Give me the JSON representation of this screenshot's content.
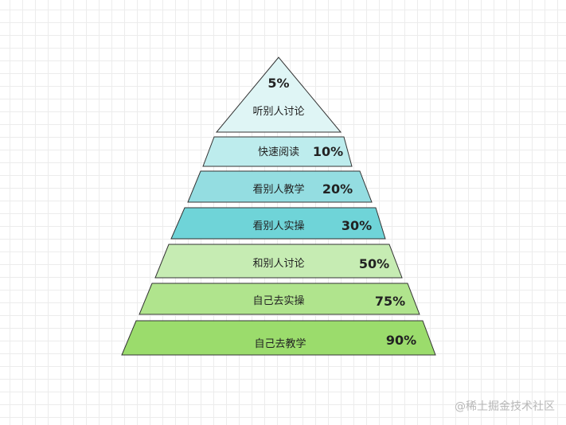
{
  "levels": [
    {
      "label": "听别人讨论",
      "percent": "5%",
      "fill": "#dff5f5"
    },
    {
      "label": "快速阅读",
      "percent": "10%",
      "fill": "#bdeced"
    },
    {
      "label": "看别人教学",
      "percent": "20%",
      "fill": "#94dde1"
    },
    {
      "label": "看别人实操",
      "percent": "30%",
      "fill": "#6fd4d8"
    },
    {
      "label": "和别人讨论",
      "percent": "50%",
      "fill": "#c6ecb3"
    },
    {
      "label": "自己去实操",
      "percent": "75%",
      "fill": "#b0e48d"
    },
    {
      "label": "自己去教学",
      "percent": "90%",
      "fill": "#9bdc6c"
    }
  ],
  "watermark": "@稀土掘金技术社区"
}
